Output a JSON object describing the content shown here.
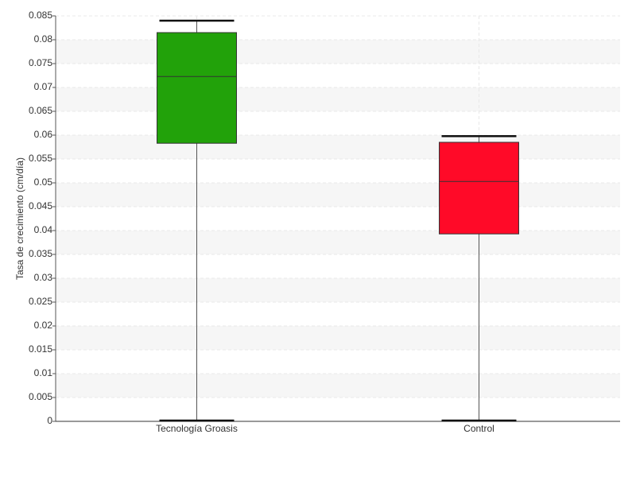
{
  "chart_data": {
    "type": "box",
    "y_label": "Tasa de crecimiento (cm/día)",
    "categories": [
      "Tecnología Groasis",
      "Control"
    ],
    "boxes": [
      {
        "min": 0,
        "q1": 0.0583,
        "median": 0.0723,
        "q3": 0.0815,
        "max": 0.084,
        "color": "#22a20a"
      },
      {
        "min": 0,
        "q1": 0.0393,
        "median": 0.0503,
        "q3": 0.0585,
        "max": 0.0598,
        "color": "#ff0a28"
      }
    ],
    "ylim": [
      0,
      0.085
    ],
    "yticks": [
      0,
      0.005,
      0.01,
      0.015,
      0.02,
      0.025,
      0.03,
      0.035,
      0.04,
      0.045,
      0.05,
      0.055,
      0.06,
      0.065,
      0.07,
      0.075,
      0.08,
      0.085
    ],
    "grid": true
  }
}
